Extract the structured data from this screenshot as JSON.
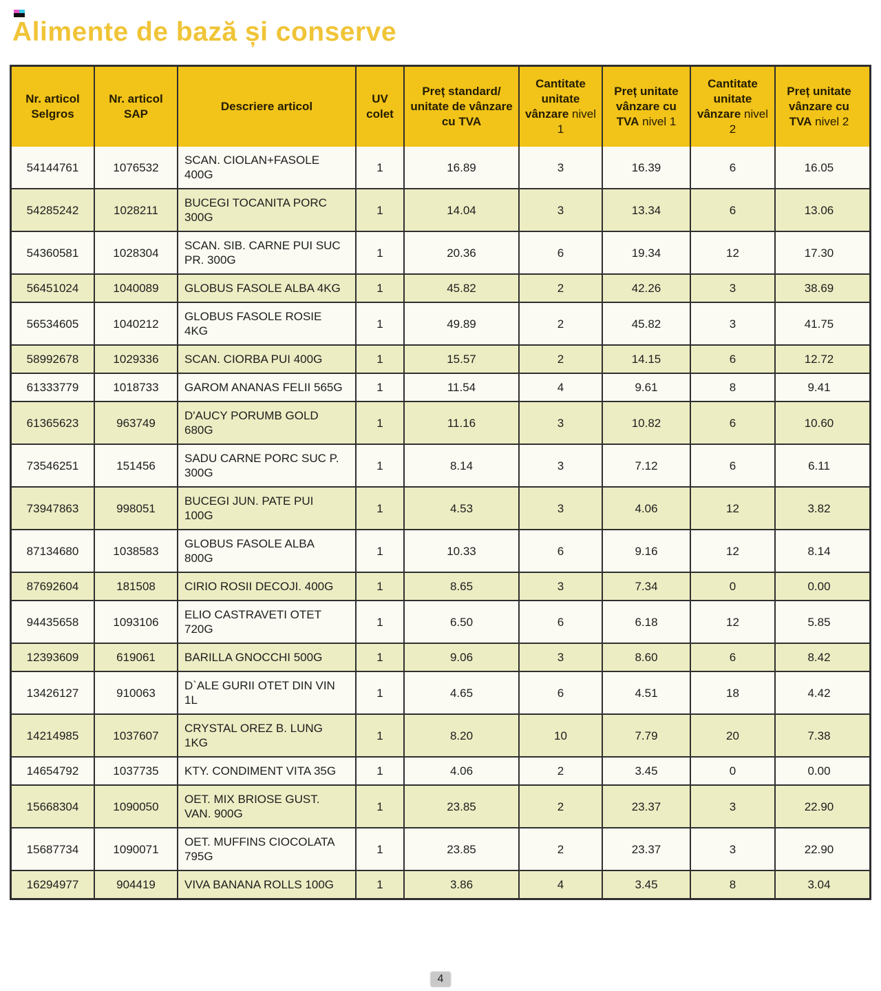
{
  "title": "Alimente de bază și conserve",
  "page_number": "4",
  "colors": {
    "title": "#F0C437",
    "header_bg": "#F2C318",
    "row_bg": "#FBFBF3",
    "row_alt_bg": "#EDEDC4",
    "border": "#2F2F2F",
    "page_badge_bg": "#C9C9C9"
  },
  "table": {
    "headers": [
      {
        "bold": "Nr. articol Selgros",
        "normal": ""
      },
      {
        "bold": "Nr. articol SAP",
        "normal": ""
      },
      {
        "bold": "Descriere articol",
        "normal": ""
      },
      {
        "bold": "UV colet",
        "normal": ""
      },
      {
        "bold": "Preț standard/ unitate de vânzare cu TVA",
        "normal": ""
      },
      {
        "bold": "Cantitate unitate vânzare",
        "normal": "nivel 1"
      },
      {
        "bold": "Preț unitate vânzare cu TVA",
        "normal": "nivel 1"
      },
      {
        "bold": "Cantitate unitate vânzare",
        "normal": "nivel 2"
      },
      {
        "bold": "Preț unitate vânzare cu TVA",
        "normal": "nivel 2"
      }
    ],
    "column_keys": [
      "nr-articol-selgros",
      "nr-articol-sap",
      "descriere-articol",
      "uv-colet",
      "pret-standard-cu-tva",
      "cantitate-unitate-vanzare-nivel-1",
      "pret-unitate-vanzare-cu-tva-nivel-1",
      "cantitate-unitate-vanzare-nivel-2",
      "pret-unitate-vanzare-cu-tva-nivel-2"
    ],
    "rows": [
      [
        "54144761",
        "1076532",
        "SCAN. CIOLAN+FASOLE 400G",
        "1",
        "16.89",
        "3",
        "16.39",
        "6",
        "16.05"
      ],
      [
        "54285242",
        "1028211",
        "BUCEGI TOCANITA PORC 300G",
        "1",
        "14.04",
        "3",
        "13.34",
        "6",
        "13.06"
      ],
      [
        "54360581",
        "1028304",
        "SCAN. SIB. CARNE PUI SUC PR. 300G",
        "1",
        "20.36",
        "6",
        "19.34",
        "12",
        "17.30"
      ],
      [
        "56451024",
        "1040089",
        "GLOBUS FASOLE ALBA 4KG",
        "1",
        "45.82",
        "2",
        "42.26",
        "3",
        "38.69"
      ],
      [
        "56534605",
        "1040212",
        "GLOBUS FASOLE ROSIE 4KG",
        "1",
        "49.89",
        "2",
        "45.82",
        "3",
        "41.75"
      ],
      [
        "58992678",
        "1029336",
        "SCAN. CIORBA PUI 400G",
        "1",
        "15.57",
        "2",
        "14.15",
        "6",
        "12.72"
      ],
      [
        "61333779",
        "1018733",
        "GAROM ANANAS FELII 565G",
        "1",
        "11.54",
        "4",
        "9.61",
        "8",
        "9.41"
      ],
      [
        "61365623",
        "963749",
        "D'AUCY PORUMB GOLD 680G",
        "1",
        "11.16",
        "3",
        "10.82",
        "6",
        "10.60"
      ],
      [
        "73546251",
        "151456",
        "SADU CARNE PORC SUC P. 300G",
        "1",
        "8.14",
        "3",
        "7.12",
        "6",
        "6.11"
      ],
      [
        "73947863",
        "998051",
        "BUCEGI JUN. PATE PUI 100G",
        "1",
        "4.53",
        "3",
        "4.06",
        "12",
        "3.82"
      ],
      [
        "87134680",
        "1038583",
        "GLOBUS FASOLE ALBA 800G",
        "1",
        "10.33",
        "6",
        "9.16",
        "12",
        "8.14"
      ],
      [
        "87692604",
        "181508",
        "CIRIO ROSII DECOJI. 400G",
        "1",
        "8.65",
        "3",
        "7.34",
        "0",
        "0.00"
      ],
      [
        "94435658",
        "1093106",
        "ELIO CASTRAVETI OTET 720G",
        "1",
        "6.50",
        "6",
        "6.18",
        "12",
        "5.85"
      ],
      [
        "12393609",
        "619061",
        "BARILLA GNOCCHI 500G",
        "1",
        "9.06",
        "3",
        "8.60",
        "6",
        "8.42"
      ],
      [
        "13426127",
        "910063",
        "D`ALE GURII OTET DIN VIN 1L",
        "1",
        "4.65",
        "6",
        "4.51",
        "18",
        "4.42"
      ],
      [
        "14214985",
        "1037607",
        "CRYSTAL OREZ B. LUNG 1KG",
        "1",
        "8.20",
        "10",
        "7.79",
        "20",
        "7.38"
      ],
      [
        "14654792",
        "1037735",
        "KTY. CONDIMENT VITA 35G",
        "1",
        "4.06",
        "2",
        "3.45",
        "0",
        "0.00"
      ],
      [
        "15668304",
        "1090050",
        "OET. MIX BRIOSE GUST. VAN. 900G",
        "1",
        "23.85",
        "2",
        "23.37",
        "3",
        "22.90"
      ],
      [
        "15687734",
        "1090071",
        "OET. MUFFINS CIOCOLATA 795G",
        "1",
        "23.85",
        "2",
        "23.37",
        "3",
        "22.90"
      ],
      [
        "16294977",
        "904419",
        "VIVA BANANA ROLLS 100G",
        "1",
        "3.86",
        "4",
        "3.45",
        "8",
        "3.04"
      ]
    ]
  }
}
